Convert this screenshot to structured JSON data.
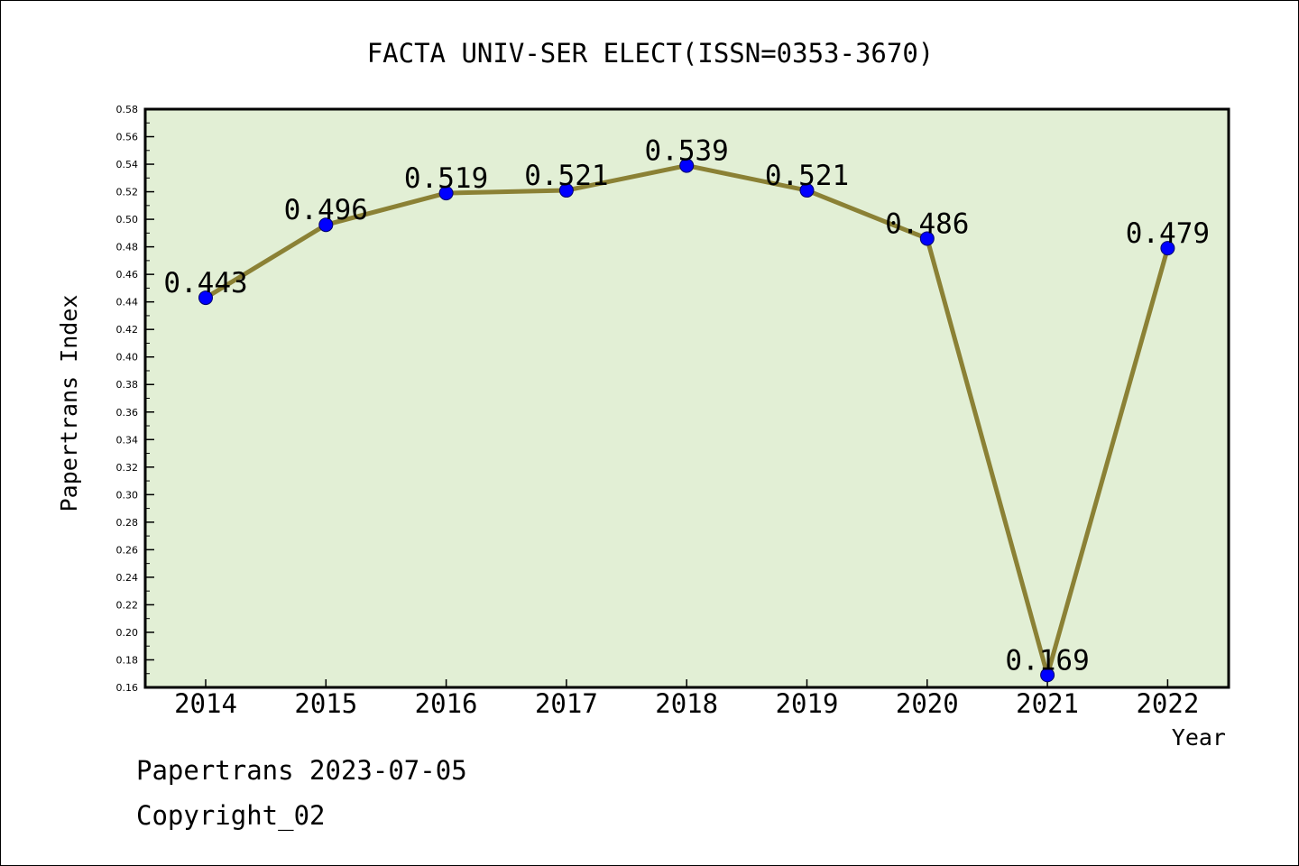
{
  "chart_data": {
    "type": "line",
    "title": "FACTA UNIV-SER ELECT(ISSN=0353-3670)",
    "xlabel": "Year",
    "ylabel": "Papertrans Index",
    "categories": [
      "2014",
      "2015",
      "2016",
      "2017",
      "2018",
      "2019",
      "2020",
      "2021",
      "2022"
    ],
    "values": [
      0.443,
      0.496,
      0.519,
      0.521,
      0.539,
      0.521,
      0.486,
      0.169,
      0.479
    ],
    "data_labels": [
      "0.443",
      "0.496",
      "0.519",
      "0.521",
      "0.539",
      "0.521",
      "0.486",
      "0.169",
      "0.479"
    ],
    "ylim": [
      0.16,
      0.58
    ],
    "ytick_step": 0.02,
    "yticks": [
      "0.16",
      "0.18",
      "0.20",
      "0.22",
      "0.24",
      "0.26",
      "0.28",
      "0.30",
      "0.32",
      "0.34",
      "0.36",
      "0.38",
      "0.40",
      "0.42",
      "0.44",
      "0.46",
      "0.48",
      "0.50",
      "0.52",
      "0.54",
      "0.56",
      "0.58"
    ],
    "grid": false,
    "colors": {
      "plot_background": "#e2efd5",
      "line": "#8b8135",
      "marker": "#0000ff"
    }
  },
  "footer": {
    "date_line": "Papertrans 2023-07-05",
    "copyright": "Copyright_02"
  }
}
